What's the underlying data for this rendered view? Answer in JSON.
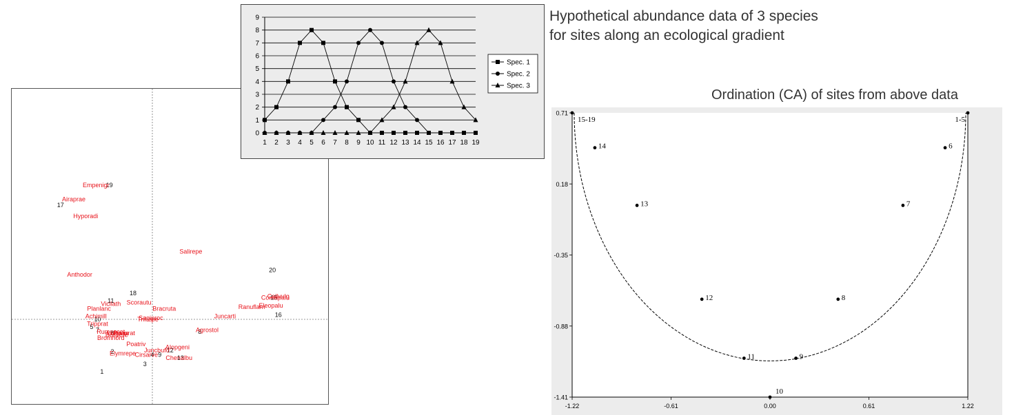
{
  "headings": {
    "main_line1": "Hypothetical abundance data of 3 species",
    "main_line2": "for sites along an ecological gradient",
    "ca": "Ordination (CA) of sites from above data"
  },
  "colors": {
    "species": "#e8141c",
    "sites": "#111111",
    "abundance_bg": "#ececec",
    "ca_bg": "#ececec"
  },
  "chart_data": [
    {
      "type": "line",
      "id": "abundance",
      "x": [
        1,
        2,
        3,
        4,
        5,
        6,
        7,
        8,
        9,
        10,
        11,
        12,
        13,
        14,
        15,
        16,
        17,
        18,
        19
      ],
      "ylim": [
        0,
        9
      ],
      "yticks": [
        0,
        1,
        2,
        3,
        4,
        5,
        6,
        7,
        8,
        9
      ],
      "grid": true,
      "legend_placement": "right",
      "series": [
        {
          "name": "Spec. 1",
          "marker": "square",
          "values": [
            1,
            2,
            4,
            7,
            8,
            7,
            4,
            2,
            1,
            0,
            0,
            0,
            0,
            0,
            0,
            0,
            0,
            0,
            0
          ]
        },
        {
          "name": "Spec. 2",
          "marker": "circle",
          "values": [
            0,
            0,
            0,
            0,
            0,
            1,
            2,
            4,
            7,
            8,
            7,
            4,
            2,
            1,
            0,
            0,
            0,
            0,
            0
          ]
        },
        {
          "name": "Spec. 3",
          "marker": "triangle",
          "values": [
            0,
            0,
            0,
            0,
            0,
            0,
            0,
            0,
            0,
            0,
            1,
            2,
            4,
            7,
            8,
            7,
            4,
            2,
            1
          ]
        }
      ]
    },
    {
      "type": "scatter",
      "id": "ca_sites",
      "xlim": [
        -1.22,
        1.22
      ],
      "ylim": [
        -1.41,
        0.71
      ],
      "xticks": [
        "-1.22",
        "-0.61",
        "0.00",
        "0.61",
        "1.22"
      ],
      "yticks": [
        "0.71",
        "0.18",
        "-0.35",
        "-0.88",
        "-1.41"
      ],
      "arch": "dashed",
      "points": [
        {
          "label": "15-19",
          "x": -1.22,
          "y": 0.71
        },
        {
          "label": "1-5",
          "x": 1.22,
          "y": 0.71
        },
        {
          "label": "14",
          "x": -1.08,
          "y": 0.45
        },
        {
          "label": "6",
          "x": 1.08,
          "y": 0.45
        },
        {
          "label": "13",
          "x": -0.82,
          "y": 0.02
        },
        {
          "label": "7",
          "x": 0.82,
          "y": 0.02
        },
        {
          "label": "12",
          "x": -0.42,
          "y": -0.68
        },
        {
          "label": "8",
          "x": 0.42,
          "y": -0.68
        },
        {
          "label": "11",
          "x": -0.16,
          "y": -1.12
        },
        {
          "label": "9",
          "x": 0.16,
          "y": -1.12
        },
        {
          "label": "10",
          "x": 0.0,
          "y": -1.41
        }
      ]
    },
    {
      "type": "scatter",
      "id": "species_biplot",
      "xlim": [
        -1,
        1
      ],
      "ylim": [
        -1,
        1
      ],
      "species": [
        {
          "label": "Empenigr",
          "x": -0.38,
          "y": 0.87
        },
        {
          "label": "Airaprae",
          "x": -0.53,
          "y": 0.78
        },
        {
          "label": "Hyporadi",
          "x": -0.45,
          "y": 0.67
        },
        {
          "label": "Salirepe",
          "x": 0.26,
          "y": 0.44
        },
        {
          "label": "Anthodor",
          "x": -0.49,
          "y": 0.29
        },
        {
          "label": "Callvulg",
          "x": 0.85,
          "y": 0.15
        },
        {
          "label": "Comapalu",
          "x": 0.83,
          "y": 0.14
        },
        {
          "label": "Eleopalu",
          "x": 0.8,
          "y": 0.09
        },
        {
          "label": "Ranuflam",
          "x": 0.67,
          "y": 0.08
        },
        {
          "label": "Juncarti",
          "x": 0.49,
          "y": 0.02
        },
        {
          "label": "Scorautu",
          "x": -0.09,
          "y": 0.11
        },
        {
          "label": "Vicilath",
          "x": -0.28,
          "y": 0.1
        },
        {
          "label": "Planlanc",
          "x": -0.36,
          "y": 0.07
        },
        {
          "label": "Bracruta",
          "x": 0.08,
          "y": 0.07
        },
        {
          "label": "Achimill",
          "x": -0.38,
          "y": 0.02
        },
        {
          "label": "Sagiproc",
          "x": -0.01,
          "y": 0.01
        },
        {
          "label": "Trifrepe",
          "x": -0.03,
          "y": 0.0
        },
        {
          "label": "Tripprat",
          "x": -0.37,
          "y": -0.03
        },
        {
          "label": "Agrostol",
          "x": 0.37,
          "y": -0.07
        },
        {
          "label": "Rumeacet",
          "x": -0.28,
          "y": -0.08
        },
        {
          "label": "Lolipere",
          "x": -0.23,
          "y": -0.09
        },
        {
          "label": "Poaprat",
          "x": -0.19,
          "y": -0.09
        },
        {
          "label": "Bellpere",
          "x": -0.24,
          "y": -0.1
        },
        {
          "label": "Bromhord",
          "x": -0.28,
          "y": -0.12
        },
        {
          "label": "Poatriv",
          "x": -0.11,
          "y": -0.16
        },
        {
          "label": "Alopgeni",
          "x": 0.17,
          "y": -0.18
        },
        {
          "label": "Juncbufo",
          "x": 0.03,
          "y": -0.2
        },
        {
          "label": "Elymrepe",
          "x": -0.2,
          "y": -0.22
        },
        {
          "label": "Cirsarve",
          "x": -0.04,
          "y": -0.23
        },
        {
          "label": "Chenalbu",
          "x": 0.18,
          "y": -0.25
        }
      ],
      "sites": [
        {
          "label": "19",
          "x": -0.29,
          "y": 0.87
        },
        {
          "label": "17",
          "x": -0.62,
          "y": 0.74
        },
        {
          "label": "20",
          "x": 0.81,
          "y": 0.32
        },
        {
          "label": "18",
          "x": -0.13,
          "y": 0.17
        },
        {
          "label": "15",
          "x": 0.82,
          "y": 0.14
        },
        {
          "label": "11",
          "x": -0.28,
          "y": 0.12
        },
        {
          "label": "16",
          "x": 0.85,
          "y": 0.03
        },
        {
          "label": "10",
          "x": -0.37,
          "y": -0.0
        },
        {
          "label": "5",
          "x": -0.41,
          "y": -0.05
        },
        {
          "label": "7",
          "x": -0.37,
          "y": -0.07
        },
        {
          "label": "6",
          "x": -0.27,
          "y": -0.09
        },
        {
          "label": "8",
          "x": 0.32,
          "y": -0.08
        },
        {
          "label": "9",
          "x": 0.05,
          "y": -0.23
        },
        {
          "label": "2",
          "x": -0.27,
          "y": -0.21
        },
        {
          "label": "4",
          "x": 0.0,
          "y": -0.23
        },
        {
          "label": "12",
          "x": 0.12,
          "y": -0.2
        },
        {
          "label": "13",
          "x": 0.19,
          "y": -0.25
        },
        {
          "label": "3",
          "x": -0.05,
          "y": -0.29
        },
        {
          "label": "1",
          "x": -0.34,
          "y": -0.34
        }
      ]
    }
  ]
}
